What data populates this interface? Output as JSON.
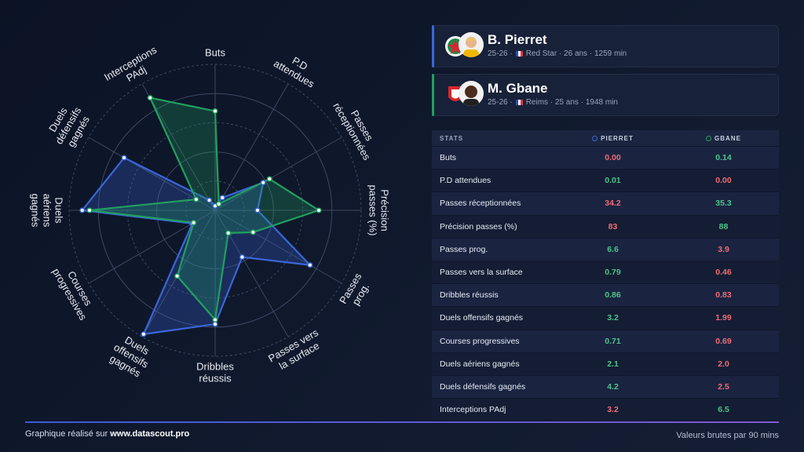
{
  "chart_data": {
    "type": "radar",
    "categories": [
      [
        "Buts"
      ],
      [
        "P.D",
        "attendues"
      ],
      [
        "Passes",
        "réceptionnées"
      ],
      [
        "Précision",
        "passes (%)"
      ],
      [
        "Passes",
        "prog."
      ],
      [
        "Passes vers",
        "la surface"
      ],
      [
        "Dribbles",
        "réussis"
      ],
      [
        "Duels",
        "offensifs",
        "gagnés"
      ],
      [
        "Courses",
        "progressives"
      ],
      [
        "Duels",
        "aériens",
        "gagnés"
      ],
      [
        "Duels",
        "défensifs",
        "gagnés"
      ],
      [
        "Interceptions",
        "PAdj"
      ]
    ],
    "rlim": [
      0,
      100
    ],
    "rticks": [
      20,
      40,
      60,
      80,
      100
    ],
    "grid": true,
    "series": [
      {
        "name": "Pierret",
        "color": "#3a66d8",
        "values": [
          3,
          10,
          38,
          29,
          75,
          37,
          78,
          98,
          18,
          91,
          72,
          8
        ]
      },
      {
        "name": "Gbane",
        "color": "#22a060",
        "values": [
          68,
          5,
          43,
          71,
          30,
          18,
          75,
          52,
          17,
          86,
          15,
          89
        ]
      }
    ]
  },
  "players": [
    {
      "name": "B. Pierret",
      "season": "25-26 ·",
      "details": "Red Star · 26 ans · 1259 min",
      "accent": "#3a66d8"
    },
    {
      "name": "M. Gbane",
      "season": "25-26 ·",
      "details": "Reims · 25 ans · 1948 min",
      "accent": "#22a060"
    }
  ],
  "table": {
    "header": [
      "STATS",
      "PIERRET",
      "GBANE"
    ],
    "rows": [
      [
        "Buts",
        {
          "text": "0.00",
          "color": "#ef6b73"
        },
        {
          "text": "0.14",
          "color": "#4cc38a"
        }
      ],
      [
        "P.D attendues",
        {
          "text": "0.01",
          "color": "#4cc38a"
        },
        {
          "text": "0.00",
          "color": "#ef6b73"
        }
      ],
      [
        "Passes réceptionnées",
        {
          "text": "34.2",
          "color": "#ef6b73"
        },
        {
          "text": "35.3",
          "color": "#4cc38a"
        }
      ],
      [
        "Précision passes (%)",
        {
          "text": "83",
          "color": "#ef6b73"
        },
        {
          "text": "88",
          "color": "#4cc38a"
        }
      ],
      [
        "Passes prog.",
        {
          "text": "6.6",
          "color": "#4cc38a"
        },
        {
          "text": "3.9",
          "color": "#ef6b73"
        }
      ],
      [
        "Passes vers la surface",
        {
          "text": "0.79",
          "color": "#4cc38a"
        },
        {
          "text": "0.46",
          "color": "#ef6b73"
        }
      ],
      [
        "Dribbles réussis",
        {
          "text": "0.86",
          "color": "#4cc38a"
        },
        {
          "text": "0.83",
          "color": "#ef6b73"
        }
      ],
      [
        "Duels offensifs gagnés",
        {
          "text": "3.2",
          "color": "#4cc38a"
        },
        {
          "text": "1.99",
          "color": "#ef6b73"
        }
      ],
      [
        "Courses progressives",
        {
          "text": "0.71",
          "color": "#4cc38a"
        },
        {
          "text": "0.69",
          "color": "#ef6b73"
        }
      ],
      [
        "Duels aériens gagnés",
        {
          "text": "2.1",
          "color": "#4cc38a"
        },
        {
          "text": "2.0",
          "color": "#ef6b73"
        }
      ],
      [
        "Duels défensifs gagnés",
        {
          "text": "4.2",
          "color": "#4cc38a"
        },
        {
          "text": "2.5",
          "color": "#ef6b73"
        }
      ],
      [
        "Interceptions PAdj",
        {
          "text": "3.2",
          "color": "#ef6b73"
        },
        {
          "text": "6.5",
          "color": "#4cc38a"
        }
      ]
    ]
  },
  "footer": {
    "prefix": "Graphique réalisé sur",
    "site": "www.datascout.pro",
    "note": "Valeurs brutes par 90 mins"
  }
}
